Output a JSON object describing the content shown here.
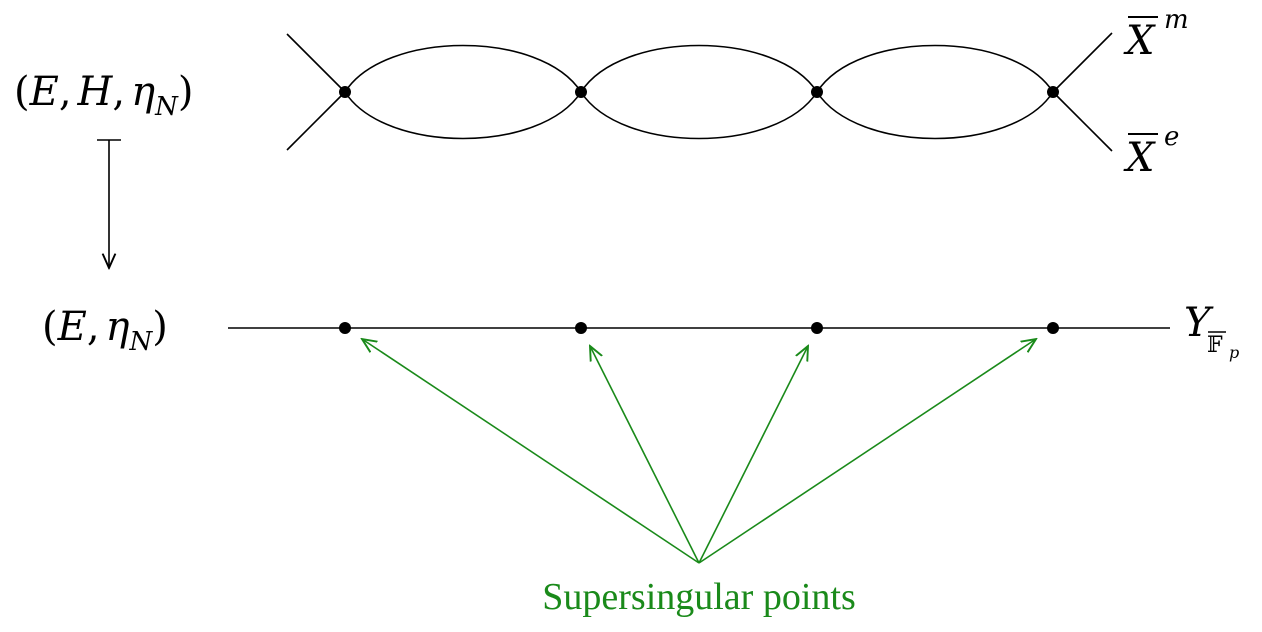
{
  "top_label": {
    "open": "(",
    "E": "E",
    "c1": ",",
    "H": "H",
    "c2": ",",
    "eta": "η",
    "eta_sub": "N",
    "close": ")"
  },
  "bottom_label": {
    "open": "(",
    "E": "E",
    "c1": ",",
    "eta": "η",
    "eta_sub": "N",
    "close": ")"
  },
  "curve_labels": {
    "Xm": {
      "base": "X",
      "sup": "m"
    },
    "Xe": {
      "base": "X",
      "sup": "e"
    },
    "Y": {
      "base": "Y",
      "sub_field": "𝔽",
      "sub_sub": "p"
    }
  },
  "annotation": "Supersingular points",
  "colors": {
    "green": "#1a8a1a",
    "black": "#000000"
  }
}
